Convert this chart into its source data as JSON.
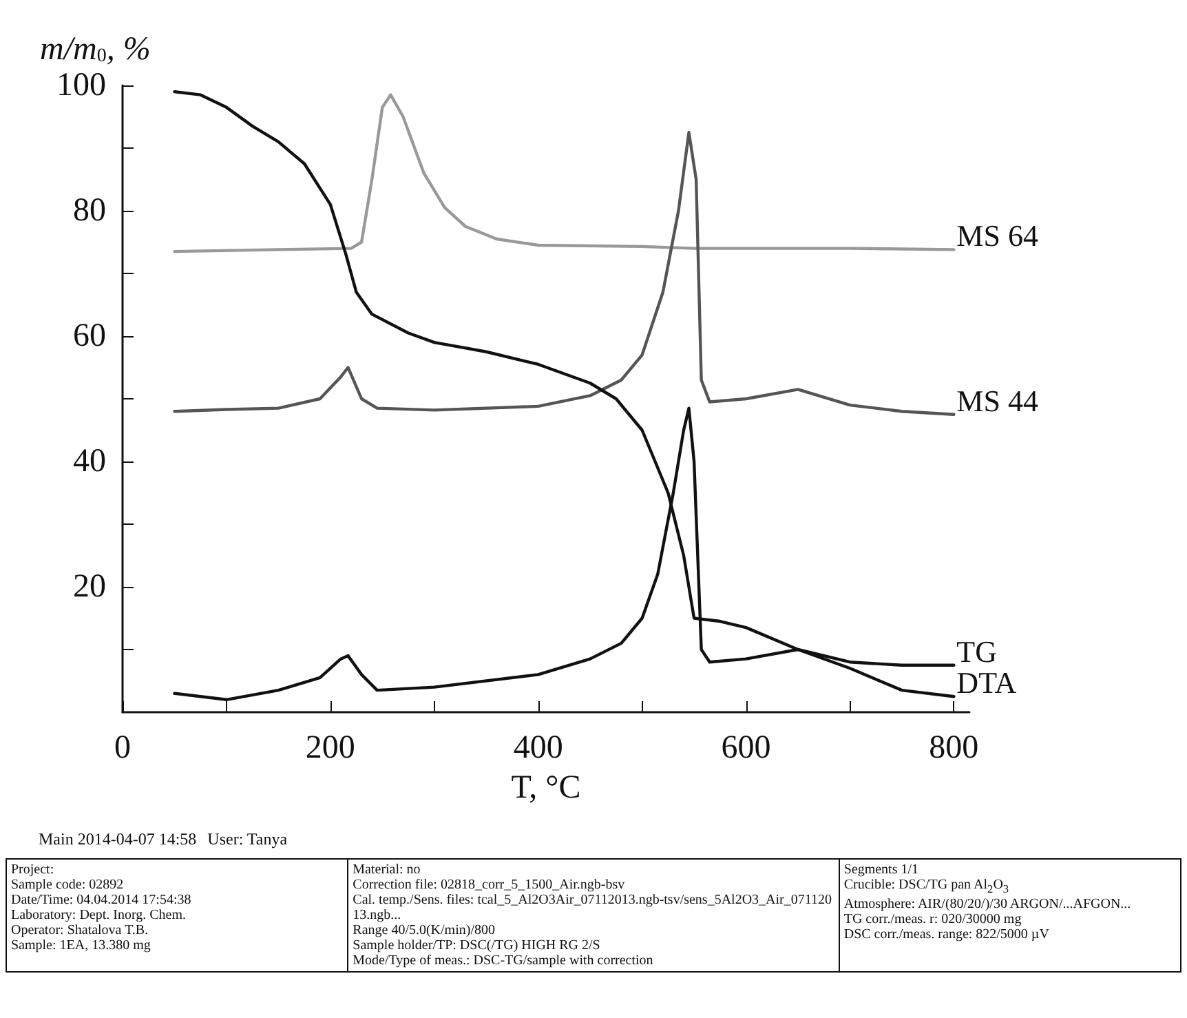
{
  "chart_data": {
    "type": "line",
    "xlabel": "T, °C",
    "ylabel": "m/m$_{0}$, %",
    "xlim": [
      0,
      815
    ],
    "xticks": [
      0,
      {
        "value": 100,
        "label": null
      },
      200,
      {
        "value": 300,
        "label": null
      },
      400,
      {
        "value": 500,
        "label": null
      },
      600,
      {
        "value": 700,
        "label": null
      },
      800
    ],
    "ylim": [
      0,
      100
    ],
    "yticks": [
      {
        "value": 10,
        "label": null
      },
      20,
      {
        "value": 30,
        "label": null
      },
      40,
      {
        "value": 50,
        "label": null
      },
      60,
      {
        "value": 70,
        "label": null
      },
      80,
      {
        "value": 90,
        "label": null
      },
      100
    ],
    "grid": false,
    "legend": false,
    "marker": "none",
    "line_style": "solid",
    "series": [
      {
        "name": "MS 64",
        "color": "#999999",
        "x": [
          50,
          150,
          220,
          230,
          240,
          250,
          258,
          270,
          290,
          310,
          330,
          360,
          400,
          500,
          550,
          600,
          700,
          800
        ],
        "values": [
          73.5,
          73.8,
          74,
          75,
          85,
          96.5,
          98.5,
          95,
          86,
          80.5,
          77.5,
          75.5,
          74.5,
          74.3,
          74,
          74,
          74,
          73.8
        ]
      },
      {
        "name": "MS 44",
        "color": "#555555",
        "x": [
          50,
          100,
          150,
          190,
          210,
          217,
          230,
          245,
          300,
          400,
          450,
          480,
          500,
          520,
          535,
          545,
          552,
          557,
          565,
          600,
          650,
          700,
          750,
          800
        ],
        "values": [
          48,
          48.3,
          48.5,
          50,
          53.5,
          55,
          50,
          48.5,
          48.2,
          48.8,
          50.5,
          53,
          57,
          67,
          80,
          92.5,
          85,
          53,
          49.5,
          50,
          51.5,
          49,
          48,
          47.5
        ]
      },
      {
        "name": "TG",
        "color": "#111111",
        "x": [
          50,
          75,
          100,
          125,
          150,
          175,
          200,
          215,
          225,
          240,
          275,
          300,
          350,
          400,
          450,
          475,
          500,
          525,
          540,
          550,
          575,
          600,
          650,
          700,
          750,
          800
        ],
        "values": [
          99,
          98.5,
          96.5,
          93.5,
          91,
          87.5,
          81,
          73,
          67,
          63.5,
          60.5,
          59,
          57.5,
          55.5,
          52.5,
          50,
          45,
          35,
          25,
          15,
          14.5,
          13.5,
          10,
          8,
          7.5,
          7.5
        ]
      },
      {
        "name": "DTA",
        "color": "#111111",
        "x": [
          50,
          100,
          150,
          190,
          210,
          217,
          230,
          245,
          300,
          400,
          450,
          480,
          500,
          515,
          530,
          540,
          545,
          550,
          557,
          565,
          600,
          650,
          700,
          750,
          800
        ],
        "values": [
          3,
          2,
          3.5,
          5.5,
          8.5,
          9,
          6,
          3.5,
          4,
          6,
          8.5,
          11,
          15,
          22,
          35,
          45,
          48.5,
          40,
          10,
          8,
          8.5,
          10,
          7,
          3.5,
          2.5
        ]
      }
    ],
    "annotations": [
      "Main 2014-04-07 14:58",
      "User: Tanya",
      "Project:",
      "Sample code: 02892",
      "Date/Time: 04.04.2014 17:54:38",
      "Laboratory: Dept. Inorg. Chem.",
      "Operator: Shatalova T.B.",
      "Sample: 1EA, 13.380 mg",
      "Material: no",
      "Correction file: 02818_corr_5_1500_Air.ngb-bsv",
      "Cal. temp./Sens. files: tcal_5_Al2O3Air_07112013.ngb-tsv/sens_5Al2O3_Air_07112013.ngb...",
      "Range 40/5.0(K/min)/800",
      "Sample holder/TP: DSC(/TG) HIGH RG 2/S",
      "Mode/Type of meas.: DSC-TG/sample with correction",
      "Segments 1/1",
      "Crucible: DSC/TG pan Al$_{2}$O$_{3}$",
      "Atmosphere: AIR/(80/20/)/30 ARGON/...AFGON...",
      "TG corr./meas. r: 020/30000 mg",
      "DSC corr./meas. range: 822/5000 µV"
    ]
  }
}
